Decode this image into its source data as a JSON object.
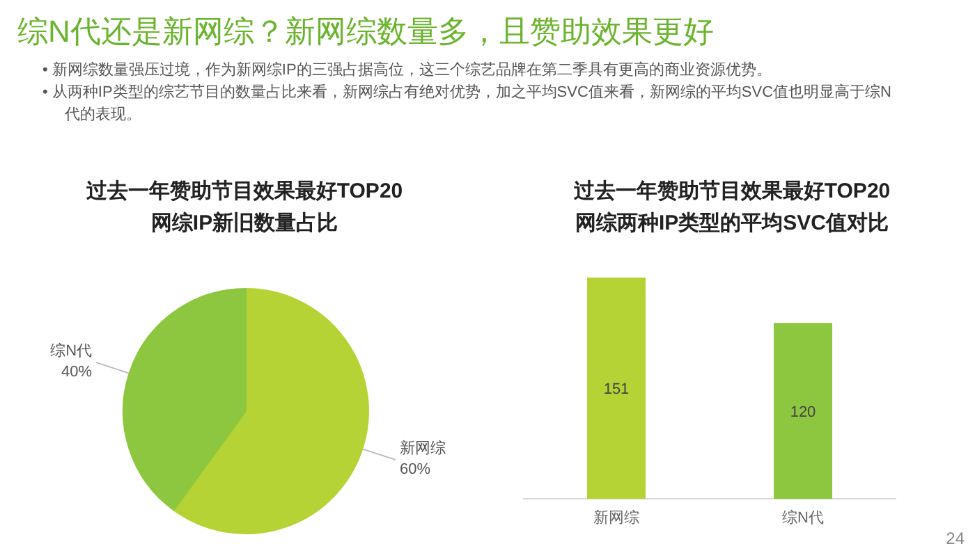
{
  "chart_data": [
    {
      "type": "other",
      "title": "综N代还是新网综？新网综数量多，且赞助效果更好",
      "annotations": [
        "• 新网综数量强压过境，作为新网综IP的三强占据高位，这三个综艺品牌在第二季具有更高的商业资源优势。",
        "• 从两种IP类型的综艺节目的数量占比来看，新网综占有绝对优势，加之平均SVC值来看，新网综的平均SVC值也明显高于综N代的表现。"
      ]
    },
    {
      "type": "pie",
      "title": "过去一年赞助节目效果最好TOP20网综IP新旧数量占比",
      "categories": [
        "新网综",
        "综N代"
      ],
      "values": [
        60,
        40
      ],
      "colors": [
        "#b5d334",
        "#8dc63f"
      ],
      "value_labels": [
        "60%",
        "40%"
      ]
    },
    {
      "type": "bar",
      "title": "过去一年赞助节目效果最好TOP20网综两种IP类型的平均SVC值对比",
      "categories": [
        "新网综",
        "综N代"
      ],
      "values": [
        151,
        120
      ],
      "colors": [
        "#b5d334",
        "#8dc63f"
      ],
      "data_labels": true,
      "annotations": [
        "24"
      ]
    }
  ]
}
